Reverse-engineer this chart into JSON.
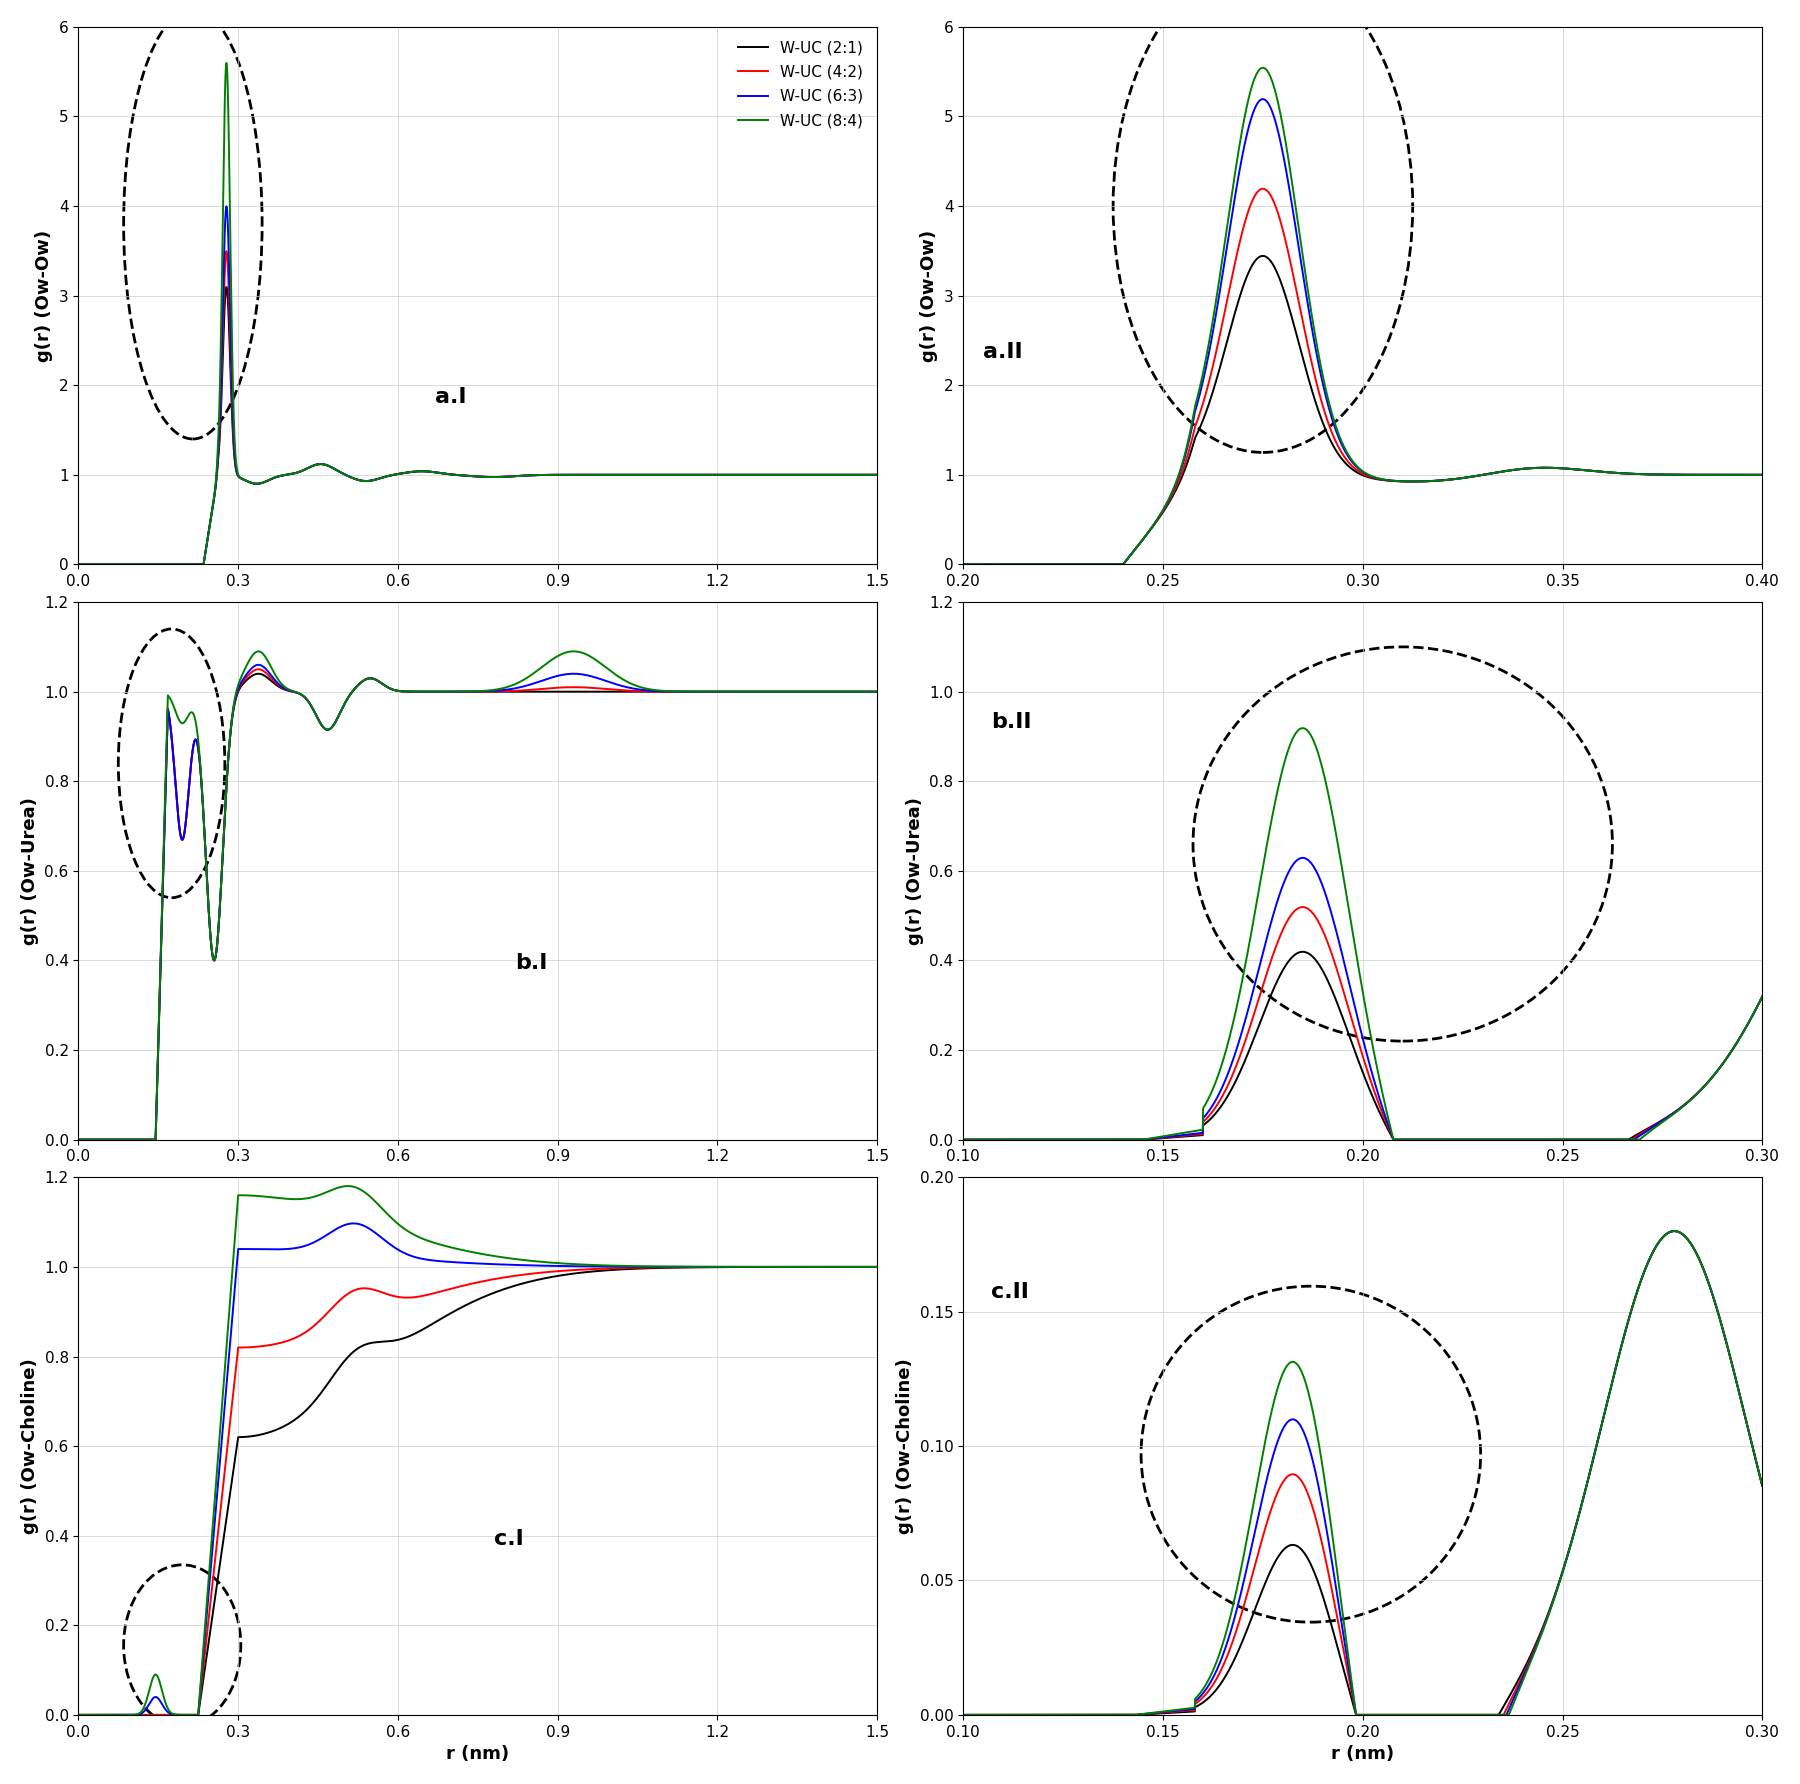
{
  "colors": [
    "black",
    "red",
    "blue",
    "green"
  ],
  "labels": [
    "W-UC (2:1)",
    "W-UC (4:2)",
    "W-UC (6:3)",
    "W-UC (8:4)"
  ],
  "ylabels": [
    "g(r) (Ow-Ow)",
    "g(r) (Ow-Ow)",
    "g(r) (Ow-Urea)",
    "g(r) (Ow-Urea)",
    "g(r) (Ow-Choline)",
    "g(r) (Ow-Choline)"
  ],
  "xlabel": "r (nm)",
  "line_width": 1.4
}
